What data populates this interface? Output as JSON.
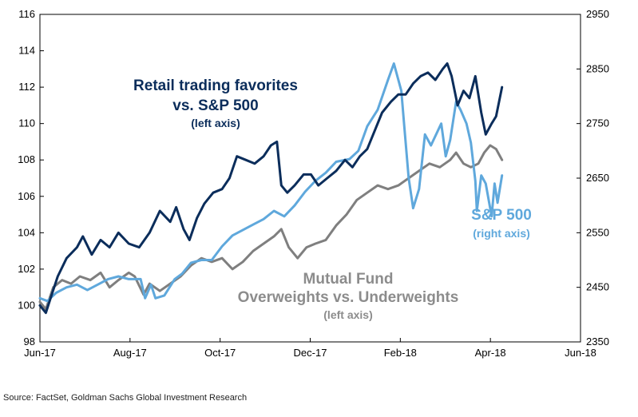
{
  "chart_data": {
    "type": "line",
    "x_tick_labels": [
      "Jun-17",
      "Aug-17",
      "Oct-17",
      "Dec-17",
      "Feb-18",
      "Apr-18",
      "Jun-18"
    ],
    "x_range": [
      "2017-06-01",
      "2018-06-01"
    ],
    "y_left": {
      "range": [
        98,
        116
      ],
      "ticks": [
        98,
        100,
        102,
        104,
        106,
        108,
        110,
        112,
        114,
        116
      ]
    },
    "y_right": {
      "range": [
        2350,
        2950
      ],
      "ticks": [
        2350,
        2450,
        2550,
        2650,
        2750,
        2850,
        2950
      ]
    },
    "grid": false,
    "series": [
      {
        "name": "Retail trading favorites vs. S&P 500",
        "axis": "left",
        "color": "#0b2d5b",
        "points": [
          [
            "2017-06-01",
            100.0
          ],
          [
            "2017-06-05",
            99.6
          ],
          [
            "2017-06-09",
            100.6
          ],
          [
            "2017-06-13",
            101.6
          ],
          [
            "2017-06-19",
            102.6
          ],
          [
            "2017-06-26",
            103.2
          ],
          [
            "2017-06-30",
            103.8
          ],
          [
            "2017-07-06",
            102.8
          ],
          [
            "2017-07-12",
            103.6
          ],
          [
            "2017-07-18",
            103.2
          ],
          [
            "2017-07-24",
            104.0
          ],
          [
            "2017-07-31",
            103.4
          ],
          [
            "2017-08-07",
            103.2
          ],
          [
            "2017-08-14",
            104.0
          ],
          [
            "2017-08-21",
            105.2
          ],
          [
            "2017-08-28",
            104.6
          ],
          [
            "2017-09-01",
            105.4
          ],
          [
            "2017-09-06",
            104.2
          ],
          [
            "2017-09-10",
            103.6
          ],
          [
            "2017-09-15",
            104.8
          ],
          [
            "2017-09-20",
            105.6
          ],
          [
            "2017-09-26",
            106.2
          ],
          [
            "2017-10-02",
            106.4
          ],
          [
            "2017-10-07",
            107.0
          ],
          [
            "2017-10-12",
            108.2
          ],
          [
            "2017-10-18",
            108.0
          ],
          [
            "2017-10-24",
            107.8
          ],
          [
            "2017-10-30",
            108.2
          ],
          [
            "2017-11-04",
            108.8
          ],
          [
            "2017-11-08",
            109.0
          ],
          [
            "2017-11-11",
            106.6
          ],
          [
            "2017-11-15",
            106.2
          ],
          [
            "2017-11-20",
            106.6
          ],
          [
            "2017-11-26",
            107.2
          ],
          [
            "2017-12-01",
            107.2
          ],
          [
            "2017-12-06",
            106.6
          ],
          [
            "2017-12-12",
            107.0
          ],
          [
            "2017-12-18",
            107.4
          ],
          [
            "2017-12-24",
            108.0
          ],
          [
            "2017-12-29",
            107.6
          ],
          [
            "2018-01-03",
            108.2
          ],
          [
            "2018-01-08",
            108.6
          ],
          [
            "2018-01-13",
            109.6
          ],
          [
            "2018-01-18",
            110.6
          ],
          [
            "2018-01-24",
            111.2
          ],
          [
            "2018-01-29",
            111.6
          ],
          [
            "2018-02-03",
            111.6
          ],
          [
            "2018-02-08",
            112.2
          ],
          [
            "2018-02-13",
            112.6
          ],
          [
            "2018-02-18",
            112.8
          ],
          [
            "2018-02-23",
            112.4
          ],
          [
            "2018-02-28",
            113.0
          ],
          [
            "2018-03-03",
            113.3
          ],
          [
            "2018-03-06",
            112.6
          ],
          [
            "2018-03-10",
            111.0
          ],
          [
            "2018-03-14",
            111.8
          ],
          [
            "2018-03-18",
            111.4
          ],
          [
            "2018-03-22",
            112.6
          ],
          [
            "2018-03-26",
            110.6
          ],
          [
            "2018-03-29",
            109.4
          ],
          [
            "2018-04-02",
            110.0
          ],
          [
            "2018-04-05",
            110.4
          ],
          [
            "2018-04-09",
            112.0
          ]
        ]
      },
      {
        "name": "S&P 500",
        "axis": "right",
        "color": "#5fa8dc",
        "points": [
          [
            "2017-06-01",
            2430
          ],
          [
            "2017-06-06",
            2425
          ],
          [
            "2017-06-12",
            2440
          ],
          [
            "2017-06-19",
            2450
          ],
          [
            "2017-06-26",
            2455
          ],
          [
            "2017-07-03",
            2445
          ],
          [
            "2017-07-10",
            2455
          ],
          [
            "2017-07-17",
            2465
          ],
          [
            "2017-07-24",
            2470
          ],
          [
            "2017-07-31",
            2465
          ],
          [
            "2017-08-08",
            2465
          ],
          [
            "2017-08-11",
            2430
          ],
          [
            "2017-08-15",
            2455
          ],
          [
            "2017-08-18",
            2430
          ],
          [
            "2017-08-24",
            2435
          ],
          [
            "2017-08-31",
            2465
          ],
          [
            "2017-09-05",
            2475
          ],
          [
            "2017-09-11",
            2495
          ],
          [
            "2017-09-18",
            2500
          ],
          [
            "2017-09-25",
            2500
          ],
          [
            "2017-10-02",
            2525
          ],
          [
            "2017-10-09",
            2545
          ],
          [
            "2017-10-16",
            2555
          ],
          [
            "2017-10-23",
            2565
          ],
          [
            "2017-10-30",
            2575
          ],
          [
            "2017-11-06",
            2590
          ],
          [
            "2017-11-13",
            2580
          ],
          [
            "2017-11-20",
            2600
          ],
          [
            "2017-11-27",
            2625
          ],
          [
            "2017-12-04",
            2645
          ],
          [
            "2017-12-11",
            2660
          ],
          [
            "2017-12-18",
            2680
          ],
          [
            "2017-12-27",
            2685
          ],
          [
            "2018-01-02",
            2700
          ],
          [
            "2018-01-08",
            2745
          ],
          [
            "2018-01-15",
            2775
          ],
          [
            "2018-01-22",
            2830
          ],
          [
            "2018-01-26",
            2860
          ],
          [
            "2018-01-31",
            2810
          ],
          [
            "2018-02-02",
            2745
          ],
          [
            "2018-02-05",
            2650
          ],
          [
            "2018-02-08",
            2595
          ],
          [
            "2018-02-12",
            2630
          ],
          [
            "2018-02-16",
            2730
          ],
          [
            "2018-02-20",
            2710
          ],
          [
            "2018-02-27",
            2750
          ],
          [
            "2018-03-02",
            2690
          ],
          [
            "2018-03-05",
            2720
          ],
          [
            "2018-03-09",
            2790
          ],
          [
            "2018-03-12",
            2775
          ],
          [
            "2018-03-16",
            2750
          ],
          [
            "2018-03-19",
            2715
          ],
          [
            "2018-03-22",
            2645
          ],
          [
            "2018-03-23",
            2590
          ],
          [
            "2018-03-26",
            2655
          ],
          [
            "2018-03-29",
            2640
          ],
          [
            "2018-04-02",
            2580
          ],
          [
            "2018-04-04",
            2640
          ],
          [
            "2018-04-06",
            2605
          ],
          [
            "2018-04-09",
            2655
          ]
        ]
      },
      {
        "name": "Mutual Fund Overweights vs. Underweights",
        "axis": "left",
        "color": "#7f7f7f",
        "points": [
          [
            "2017-06-01",
            100.2
          ],
          [
            "2017-06-05",
            99.8
          ],
          [
            "2017-06-10",
            101.0
          ],
          [
            "2017-06-16",
            101.4
          ],
          [
            "2017-06-22",
            101.2
          ],
          [
            "2017-06-28",
            101.6
          ],
          [
            "2017-07-05",
            101.4
          ],
          [
            "2017-07-12",
            101.8
          ],
          [
            "2017-07-18",
            101.0
          ],
          [
            "2017-07-24",
            101.4
          ],
          [
            "2017-07-31",
            101.8
          ],
          [
            "2017-08-04",
            101.6
          ],
          [
            "2017-08-10",
            100.6
          ],
          [
            "2017-08-14",
            101.2
          ],
          [
            "2017-08-21",
            100.8
          ],
          [
            "2017-08-28",
            101.2
          ],
          [
            "2017-09-04",
            101.6
          ],
          [
            "2017-09-11",
            102.2
          ],
          [
            "2017-09-18",
            102.6
          ],
          [
            "2017-09-25",
            102.4
          ],
          [
            "2017-10-02",
            102.6
          ],
          [
            "2017-10-09",
            102.0
          ],
          [
            "2017-10-16",
            102.4
          ],
          [
            "2017-10-23",
            103.0
          ],
          [
            "2017-10-30",
            103.4
          ],
          [
            "2017-11-06",
            103.8
          ],
          [
            "2017-11-11",
            104.2
          ],
          [
            "2017-11-16",
            103.2
          ],
          [
            "2017-11-22",
            102.6
          ],
          [
            "2017-11-28",
            103.2
          ],
          [
            "2017-12-04",
            103.4
          ],
          [
            "2017-12-11",
            103.6
          ],
          [
            "2017-12-18",
            104.4
          ],
          [
            "2017-12-25",
            105.0
          ],
          [
            "2018-01-01",
            105.8
          ],
          [
            "2018-01-08",
            106.2
          ],
          [
            "2018-01-15",
            106.6
          ],
          [
            "2018-01-22",
            106.4
          ],
          [
            "2018-01-29",
            106.6
          ],
          [
            "2018-02-05",
            107.0
          ],
          [
            "2018-02-12",
            107.4
          ],
          [
            "2018-02-19",
            107.8
          ],
          [
            "2018-02-26",
            107.6
          ],
          [
            "2018-03-05",
            108.0
          ],
          [
            "2018-03-09",
            108.4
          ],
          [
            "2018-03-14",
            107.8
          ],
          [
            "2018-03-19",
            107.6
          ],
          [
            "2018-03-24",
            107.8
          ],
          [
            "2018-03-28",
            108.4
          ],
          [
            "2018-04-01",
            108.8
          ],
          [
            "2018-04-05",
            108.6
          ],
          [
            "2018-04-09",
            108.0
          ]
        ]
      }
    ],
    "annotations": [
      {
        "lines": [
          "Retail trading favorites",
          "vs. S&P 500",
          "(left axis)"
        ],
        "series": 0
      },
      {
        "lines": [
          "S&P 500",
          "(right axis)"
        ],
        "series": 1
      },
      {
        "lines": [
          "Mutual Fund",
          "Overweights vs. Underweights",
          "(left axis)"
        ],
        "series": 2
      }
    ]
  },
  "source": "Source: FactSet, Goldman Sachs Global Investment Research"
}
